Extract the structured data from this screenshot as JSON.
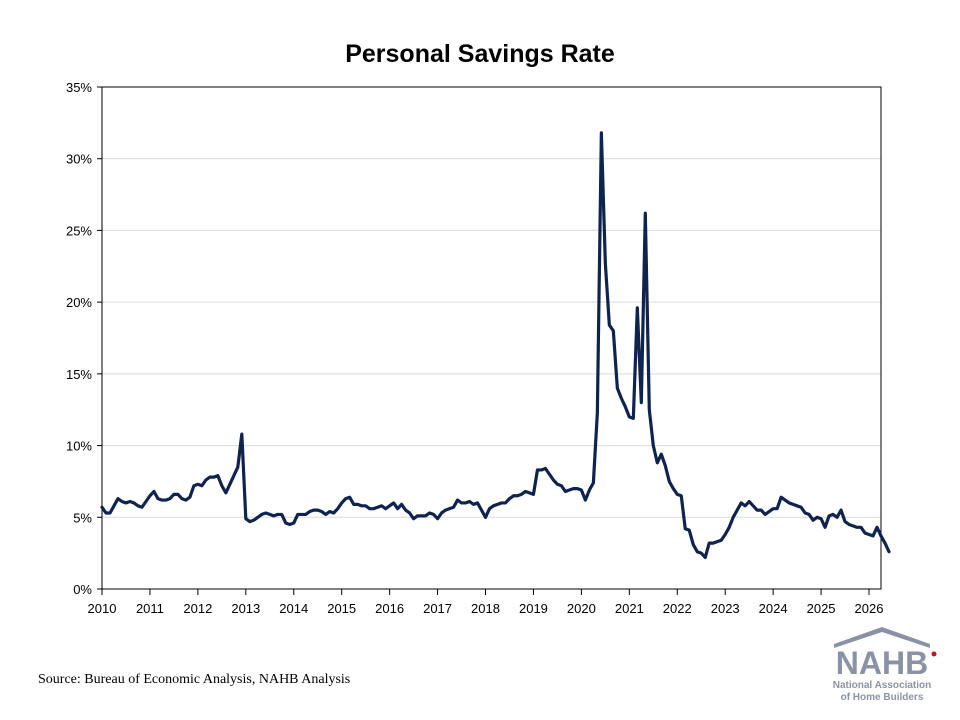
{
  "chart_data": {
    "type": "line",
    "title": "Personal Savings Rate",
    "xlabel": "",
    "ylabel": "",
    "x_ticks": [
      "2010",
      "2011",
      "2012",
      "2013",
      "2014",
      "2015",
      "2016",
      "2017",
      "2018",
      "2019",
      "2020",
      "2021",
      "2022",
      "2023",
      "2024",
      "2025",
      "2026"
    ],
    "y_ticks": [
      "0%",
      "5%",
      "10%",
      "15%",
      "20%",
      "25%",
      "30%",
      "35%"
    ],
    "xlim": [
      "2010-01",
      "2026-04"
    ],
    "ylim": [
      0,
      35
    ],
    "grid": "horizontal",
    "legend": "none",
    "line_color": "#0f2350",
    "series": [
      {
        "x_start": "2010-01",
        "frequency": "monthly",
        "values": [
          5.7,
          5.3,
          5.3,
          5.8,
          6.3,
          6.1,
          6.0,
          6.1,
          6.0,
          5.8,
          5.7,
          6.1,
          6.5,
          6.8,
          6.3,
          6.2,
          6.2,
          6.3,
          6.6,
          6.6,
          6.3,
          6.2,
          6.4,
          7.2,
          7.3,
          7.2,
          7.6,
          7.8,
          7.8,
          7.9,
          7.2,
          6.7,
          7.3,
          7.9,
          8.5,
          10.8,
          4.9,
          4.7,
          4.8,
          5.0,
          5.2,
          5.3,
          5.2,
          5.1,
          5.2,
          5.2,
          4.6,
          4.5,
          4.6,
          5.2,
          5.2,
          5.2,
          5.4,
          5.5,
          5.5,
          5.4,
          5.2,
          5.4,
          5.3,
          5.6,
          6.0,
          6.3,
          6.4,
          5.9,
          5.9,
          5.8,
          5.8,
          5.6,
          5.6,
          5.7,
          5.8,
          5.6,
          5.8,
          6.0,
          5.6,
          5.9,
          5.5,
          5.3,
          4.9,
          5.1,
          5.1,
          5.1,
          5.3,
          5.2,
          4.9,
          5.3,
          5.5,
          5.6,
          5.7,
          6.2,
          6.0,
          6.0,
          6.1,
          5.9,
          6.0,
          5.5,
          5.0,
          5.6,
          5.8,
          5.9,
          6.0,
          6.0,
          6.3,
          6.5,
          6.5,
          6.6,
          6.8,
          6.7,
          6.6,
          8.3,
          8.3,
          8.4,
          8.0,
          7.6,
          7.3,
          7.2,
          6.8,
          6.9,
          7.0,
          7.0,
          6.9,
          6.2,
          6.9,
          7.4,
          12.3,
          31.8,
          22.7,
          18.4,
          18.0,
          14.0,
          13.3,
          12.7,
          12.0,
          11.9,
          19.6,
          13.0,
          26.2,
          12.5,
          10.0,
          8.8,
          9.4,
          8.6,
          7.5,
          7.0,
          6.6,
          6.5,
          4.2,
          4.1,
          3.1,
          2.6,
          2.5,
          2.2,
          3.2,
          3.2,
          3.3,
          3.4,
          3.8,
          4.3,
          5.0,
          5.5,
          6.0,
          5.8,
          6.1,
          5.8,
          5.5,
          5.5,
          5.2,
          5.4,
          5.6,
          5.6,
          6.4,
          6.2,
          6.0,
          5.9,
          5.8,
          5.7,
          5.3,
          5.2,
          4.8,
          5.0,
          4.9,
          4.3,
          5.1,
          5.2,
          5.0,
          5.5,
          4.7,
          4.5,
          4.4,
          4.3,
          4.3,
          3.9,
          3.8,
          3.7,
          4.3,
          3.7,
          3.2,
          2.6
        ]
      }
    ]
  },
  "source": "Source: Bureau of Economic Analysis, NAHB Analysis",
  "logo": {
    "brand": "NAHB",
    "line1": "National Association",
    "line2": "of Home Builders",
    "colors": {
      "text": "#8a93a6",
      "roof": "#8a93a6",
      "accent": "#c8102e"
    }
  }
}
